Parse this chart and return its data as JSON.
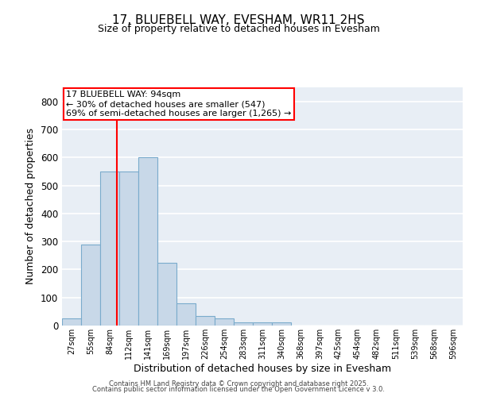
{
  "title": "17, BLUEBELL WAY, EVESHAM, WR11 2HS",
  "subtitle": "Size of property relative to detached houses in Evesham",
  "xlabel": "Distribution of detached houses by size in Evesham",
  "ylabel": "Number of detached properties",
  "bin_labels": [
    "27sqm",
    "55sqm",
    "84sqm",
    "112sqm",
    "141sqm",
    "169sqm",
    "197sqm",
    "226sqm",
    "254sqm",
    "283sqm",
    "311sqm",
    "340sqm",
    "368sqm",
    "397sqm",
    "425sqm",
    "454sqm",
    "482sqm",
    "511sqm",
    "539sqm",
    "568sqm",
    "596sqm"
  ],
  "bar_values": [
    25,
    290,
    550,
    550,
    600,
    225,
    80,
    35,
    25,
    10,
    10,
    10,
    0,
    0,
    0,
    0,
    0,
    0,
    0,
    0,
    0
  ],
  "bar_color": "#c8d8e8",
  "bar_edgecolor": "#7aabcc",
  "annotation_title": "17 BLUEBELL WAY: 94sqm",
  "annotation_line1": "← 30% of detached houses are smaller (547)",
  "annotation_line2": "69% of semi-detached houses are larger (1,265) →",
  "ylim": [
    0,
    850
  ],
  "yticks": [
    0,
    100,
    200,
    300,
    400,
    500,
    600,
    700,
    800
  ],
  "background_color": "#e8eef5",
  "grid_color": "#ffffff",
  "red_line_x": 2.357,
  "footer1": "Contains HM Land Registry data © Crown copyright and database right 2025.",
  "footer2": "Contains public sector information licensed under the Open Government Licence v 3.0."
}
